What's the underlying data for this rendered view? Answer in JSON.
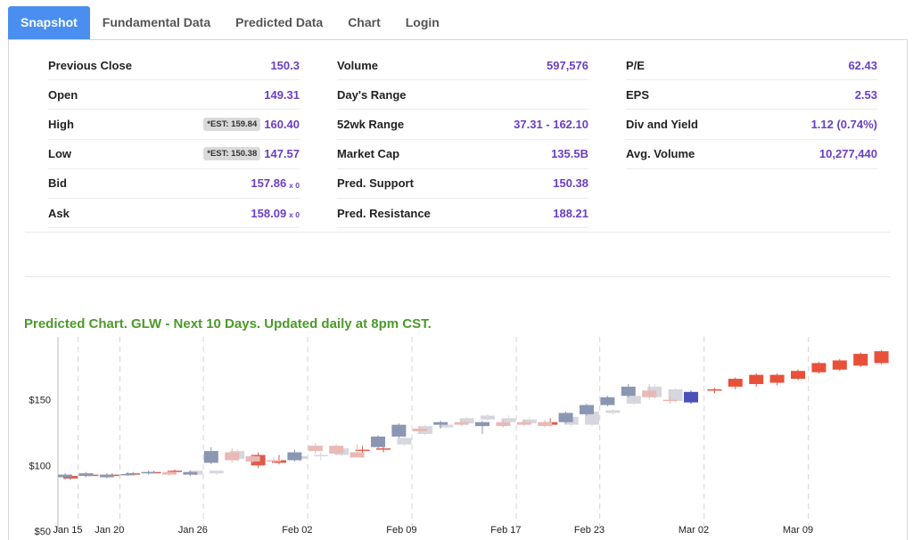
{
  "tabs": [
    {
      "label": "Snapshot",
      "active": true
    },
    {
      "label": "Fundamental Data",
      "active": false
    },
    {
      "label": "Predicted Data",
      "active": false
    },
    {
      "label": "Chart",
      "active": false
    },
    {
      "label": "Login",
      "active": false
    }
  ],
  "stats": {
    "col1": [
      {
        "label": "Previous Close",
        "value": "150.3"
      },
      {
        "label": "Open",
        "value": "149.31"
      },
      {
        "label": "High",
        "badge": "*EST: 159.84",
        "value": "160.40"
      },
      {
        "label": "Low",
        "badge": "*EST: 150.38",
        "value": "147.57"
      },
      {
        "label": "Bid",
        "value": "157.86",
        "suffix": "x 0"
      },
      {
        "label": "Ask",
        "value": "158.09",
        "suffix": "x 0"
      }
    ],
    "col2": [
      {
        "label": "Volume",
        "value": "597,576"
      },
      {
        "label": "Day's Range",
        "value": ""
      },
      {
        "label": "52wk Range",
        "value": "37.31 - 162.10"
      },
      {
        "label": "Market Cap",
        "value": "135.5B"
      },
      {
        "label": "Pred. Support",
        "value": "150.38"
      },
      {
        "label": "Pred. Resistance",
        "value": "188.21"
      }
    ],
    "col3": [
      {
        "label": "P/E",
        "value": "62.43"
      },
      {
        "label": "EPS",
        "value": "2.53"
      },
      {
        "label": "Div and Yield",
        "value": "1.12 (0.74%)"
      },
      {
        "label": "Avg. Volume",
        "value": "10,277,440"
      }
    ]
  },
  "chart_title": "Predicted Chart. GLW - Next 10 Days. Updated daily at 8pm CST.",
  "chart_data": {
    "type": "candlestick",
    "yticks": [
      {
        "value": 50,
        "label": "$50"
      },
      {
        "value": 100,
        "label": "$100"
      },
      {
        "value": 150,
        "label": "$150"
      }
    ],
    "ylim": [
      50,
      200
    ],
    "xticks": [
      {
        "i": 0,
        "label": "Jan 15"
      },
      {
        "i": 2,
        "label": "Jan 20"
      },
      {
        "i": 6,
        "label": "Jan 26"
      },
      {
        "i": 11,
        "label": "Feb 02"
      },
      {
        "i": 16,
        "label": "Feb 09"
      },
      {
        "i": 21,
        "label": "Feb 17"
      },
      {
        "i": 25,
        "label": "Feb 23"
      },
      {
        "i": 30,
        "label": "Mar 02"
      },
      {
        "i": 35,
        "label": "Mar 09"
      }
    ],
    "gridlines_at": [
      0.5,
      2.5,
      6.5,
      11.5,
      16.5,
      21.5,
      25.5,
      30.5,
      35.5
    ],
    "colors": {
      "hist_up": "#8b96b2",
      "hist_down": "#e9b9b6",
      "pred_hist_up": "#d6d6de",
      "pred_hist_down": "#e05a49",
      "current_up": "#4a52b8",
      "forecast": "#e8503a"
    },
    "series": [
      {
        "name": "actual",
        "values": [
          {
            "i": 0,
            "o": 91,
            "h": 94,
            "l": 89,
            "c": 93
          },
          {
            "i": 1,
            "o": 92,
            "h": 95,
            "l": 91,
            "c": 94
          },
          {
            "i": 2,
            "o": 91,
            "h": 94,
            "l": 90,
            "c": 93
          },
          {
            "i": 3,
            "o": 93,
            "h": 95,
            "l": 92,
            "c": 93.5
          },
          {
            "i": 4,
            "o": 94,
            "h": 96,
            "l": 93,
            "c": 95
          },
          {
            "i": 5,
            "o": 95,
            "h": 96,
            "l": 92,
            "c": 93
          },
          {
            "i": 6,
            "o": 93,
            "h": 96,
            "l": 92,
            "c": 95
          },
          {
            "i": 7,
            "o": 102,
            "h": 114,
            "l": 101,
            "c": 111
          },
          {
            "i": 8,
            "o": 110,
            "h": 113,
            "l": 102,
            "c": 104
          },
          {
            "i": 9,
            "o": 107,
            "h": 109,
            "l": 102,
            "c": 103
          },
          {
            "i": 10,
            "o": 104,
            "h": 106,
            "l": 102,
            "c": 103
          },
          {
            "i": 11,
            "o": 104,
            "h": 112,
            "l": 103,
            "c": 110
          },
          {
            "i": 12,
            "o": 115,
            "h": 117,
            "l": 109,
            "c": 111
          },
          {
            "i": 13,
            "o": 115,
            "h": 116,
            "l": 108,
            "c": 109
          },
          {
            "i": 14,
            "o": 110,
            "h": 116,
            "l": 106,
            "c": 106
          },
          {
            "i": 15,
            "o": 114,
            "h": 123,
            "l": 113,
            "c": 122
          },
          {
            "i": 16,
            "o": 122,
            "h": 132,
            "l": 121,
            "c": 131
          },
          {
            "i": 17,
            "o": 128,
            "h": 130,
            "l": 124,
            "c": 126
          },
          {
            "i": 18,
            "o": 131,
            "h": 134,
            "l": 128,
            "c": 133
          },
          {
            "i": 19,
            "o": 133,
            "h": 135,
            "l": 130,
            "c": 131
          },
          {
            "i": 20,
            "o": 130,
            "h": 134,
            "l": 124,
            "c": 133
          },
          {
            "i": 21,
            "o": 133,
            "h": 135,
            "l": 129,
            "c": 130
          },
          {
            "i": 22,
            "o": 133,
            "h": 135,
            "l": 130,
            "c": 131
          },
          {
            "i": 23,
            "o": 133,
            "h": 135,
            "l": 129,
            "c": 130
          },
          {
            "i": 24,
            "o": 133,
            "h": 141,
            "l": 132,
            "c": 140
          },
          {
            "i": 25,
            "o": 139,
            "h": 147,
            "l": 138,
            "c": 146
          },
          {
            "i": 26,
            "o": 146,
            "h": 153,
            "l": 145,
            "c": 152
          },
          {
            "i": 27,
            "o": 153,
            "h": 162,
            "l": 152,
            "c": 160
          },
          {
            "i": 28,
            "o": 157,
            "h": 162,
            "l": 150,
            "c": 152
          },
          {
            "i": 29,
            "o": 150,
            "h": 153,
            "l": 147,
            "c": 149
          },
          {
            "i": 30,
            "o": 148,
            "h": 157,
            "l": 147,
            "c": 156
          }
        ]
      },
      {
        "name": "predicted_history",
        "values": [
          {
            "i": 0,
            "o": 92,
            "h": 93,
            "l": 89,
            "c": 90
          },
          {
            "i": 1,
            "o": 93,
            "h": 94,
            "l": 92,
            "c": 92.5
          },
          {
            "i": 2,
            "o": 93,
            "h": 94,
            "l": 91,
            "c": 92
          },
          {
            "i": 3,
            "o": 94,
            "h": 95,
            "l": 93,
            "c": 93.5
          },
          {
            "i": 4,
            "o": 95,
            "h": 96,
            "l": 94,
            "c": 94.5
          },
          {
            "i": 5,
            "o": 96,
            "h": 97,
            "l": 94,
            "c": 95
          },
          {
            "i": 6,
            "o": 93,
            "h": 96,
            "l": 92,
            "c": 96
          },
          {
            "i": 7,
            "o": 94,
            "h": 96,
            "l": 93,
            "c": 96
          },
          {
            "i": 8,
            "o": 105,
            "h": 112,
            "l": 103,
            "c": 111
          },
          {
            "i": 9,
            "o": 108,
            "h": 110,
            "l": 98,
            "c": 100
          },
          {
            "i": 10,
            "o": 104,
            "h": 108,
            "l": 101,
            "c": 102
          },
          {
            "i": 11,
            "o": 105,
            "h": 108,
            "l": 103,
            "c": 107
          },
          {
            "i": 12,
            "o": 107,
            "h": 110,
            "l": 104,
            "c": 108
          },
          {
            "i": 13,
            "o": 108,
            "h": 114,
            "l": 107,
            "c": 113
          },
          {
            "i": 14,
            "o": 112,
            "h": 115,
            "l": 109,
            "c": 111
          },
          {
            "i": 15,
            "o": 113,
            "h": 116,
            "l": 110,
            "c": 112
          },
          {
            "i": 16,
            "o": 116,
            "h": 122,
            "l": 115,
            "c": 121
          },
          {
            "i": 17,
            "o": 124,
            "h": 131,
            "l": 123,
            "c": 130
          },
          {
            "i": 18,
            "o": 129,
            "h": 133,
            "l": 128,
            "c": 131
          },
          {
            "i": 19,
            "o": 132,
            "h": 137,
            "l": 131,
            "c": 136
          },
          {
            "i": 20,
            "o": 135,
            "h": 139,
            "l": 134,
            "c": 138
          },
          {
            "i": 21,
            "o": 133,
            "h": 138,
            "l": 132,
            "c": 136
          },
          {
            "i": 22,
            "o": 132,
            "h": 137,
            "l": 131,
            "c": 135
          },
          {
            "i": 23,
            "o": 133,
            "h": 136,
            "l": 130,
            "c": 131
          },
          {
            "i": 24,
            "o": 131,
            "h": 138,
            "l": 130,
            "c": 137
          },
          {
            "i": 25,
            "o": 131,
            "h": 142,
            "l": 130,
            "c": 141
          },
          {
            "i": 26,
            "o": 140,
            "h": 143,
            "l": 139,
            "c": 142
          },
          {
            "i": 27,
            "o": 147,
            "h": 154,
            "l": 146,
            "c": 153
          },
          {
            "i": 28,
            "o": 152,
            "h": 162,
            "l": 151,
            "c": 160
          },
          {
            "i": 29,
            "o": 149,
            "h": 159,
            "l": 148,
            "c": 158
          }
        ]
      },
      {
        "name": "forecast",
        "values": [
          {
            "i": 31,
            "o": 157,
            "h": 159,
            "l": 155,
            "c": 158
          },
          {
            "i": 32,
            "o": 160,
            "h": 167,
            "l": 158,
            "c": 166
          },
          {
            "i": 33,
            "o": 162,
            "h": 170,
            "l": 160,
            "c": 169
          },
          {
            "i": 34,
            "o": 163,
            "h": 170,
            "l": 161,
            "c": 169
          },
          {
            "i": 35,
            "o": 166,
            "h": 173,
            "l": 165,
            "c": 172
          },
          {
            "i": 36,
            "o": 171,
            "h": 179,
            "l": 170,
            "c": 178
          },
          {
            "i": 37,
            "o": 173,
            "h": 181,
            "l": 172,
            "c": 180
          },
          {
            "i": 38,
            "o": 176,
            "h": 186,
            "l": 175,
            "c": 185
          },
          {
            "i": 39,
            "o": 178,
            "h": 188,
            "l": 177,
            "c": 187
          }
        ]
      }
    ]
  }
}
